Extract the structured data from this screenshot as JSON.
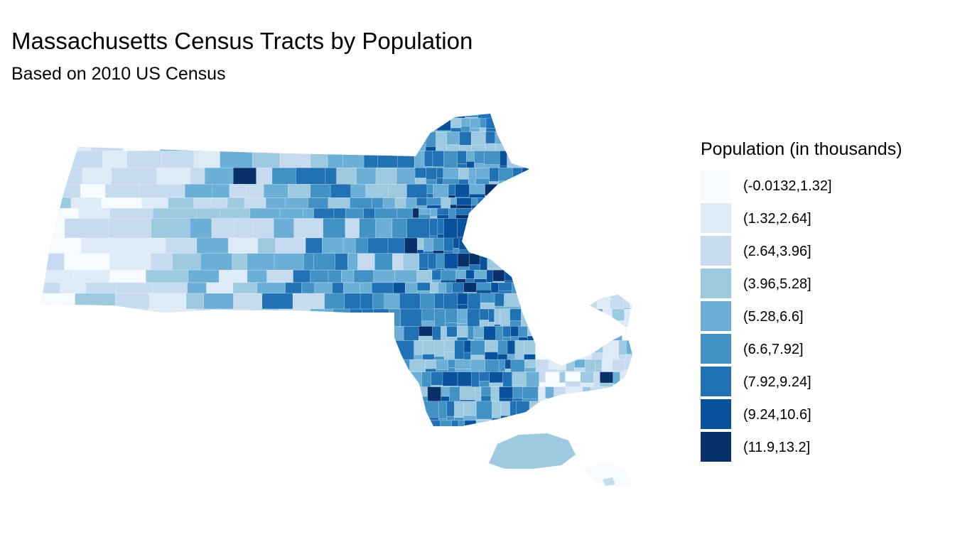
{
  "title": "Massachusetts Census Tracts by Population",
  "subtitle": "Based on 2010 US Census",
  "legend": {
    "title": "Population (in thousands)",
    "items": [
      {
        "label": "(-0.0132,1.32]",
        "color": "#f7fbff"
      },
      {
        "label": "(1.32,2.64]",
        "color": "#deebf7"
      },
      {
        "label": "(2.64,3.96]",
        "color": "#c6dbef"
      },
      {
        "label": "(3.96,5.28]",
        "color": "#9ecae1"
      },
      {
        "label": "(5.28,6.6]",
        "color": "#6baed6"
      },
      {
        "label": "(6.6,7.92]",
        "color": "#4292c6"
      },
      {
        "label": "(7.92,9.24]",
        "color": "#2171b5"
      },
      {
        "label": "(9.24,10.6]",
        "color": "#08519c"
      },
      {
        "label": "(11.9,13.2]",
        "color": "#08306b"
      }
    ]
  }
}
